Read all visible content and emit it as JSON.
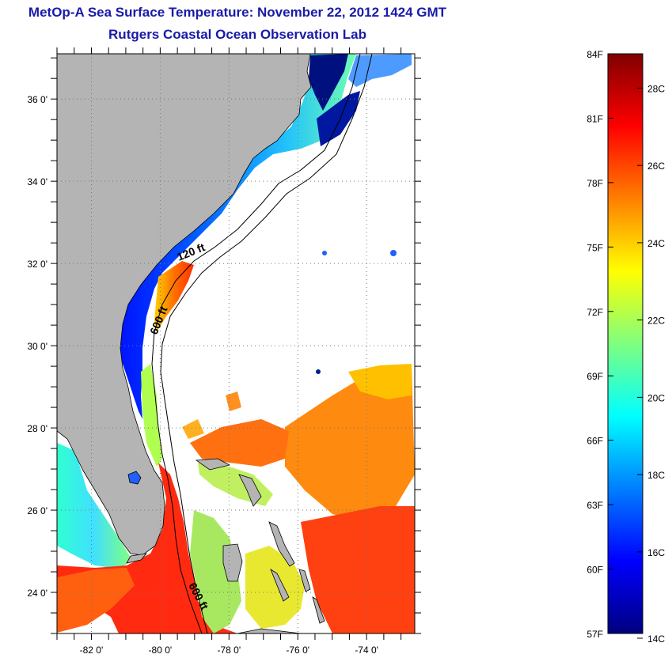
{
  "title": "MetOp-A Sea Surface Temperature:  November 22, 2012 1424 GMT",
  "subtitle": "Rutgers Coastal Ocean Observation Lab",
  "map": {
    "lon_range": [
      -83,
      -72.6
    ],
    "lat_range": [
      23,
      37.1
    ],
    "lat_ticks": [
      {
        "value": 36,
        "label": "36 0'"
      },
      {
        "value": 34,
        "label": "34 0'"
      },
      {
        "value": 32,
        "label": "32 0'"
      },
      {
        "value": 30,
        "label": "30 0'"
      },
      {
        "value": 28,
        "label": "28 0'"
      },
      {
        "value": 26,
        "label": "26 0'"
      },
      {
        "value": 24,
        "label": "24 0'"
      }
    ],
    "lon_ticks": [
      {
        "value": -82,
        "label": "-82 0'"
      },
      {
        "value": -80,
        "label": "-80 0'"
      },
      {
        "value": -78,
        "label": "-78 0'"
      },
      {
        "value": -76,
        "label": "-76 0'"
      },
      {
        "value": -74,
        "label": "-74 0'"
      }
    ],
    "contour_labels": [
      {
        "text": "120 ft"
      },
      {
        "text": "600 ft"
      },
      {
        "text": "600 ft"
      }
    ],
    "colors": {
      "land": "#b4b4b4",
      "ocean_nodata": "#ffffff",
      "grid": "#888888"
    }
  },
  "colorbar": {
    "fahrenheit_labels": [
      "84F",
      "81F",
      "78F",
      "75F",
      "72F",
      "69F",
      "66F",
      "63F",
      "60F",
      "57F"
    ],
    "celsius_labels": [
      "28C",
      "26C",
      "24C",
      "22C",
      "20C",
      "18C",
      "16C",
      "14C"
    ],
    "colors": [
      "#00007f",
      "#0000ff",
      "#007fff",
      "#00ffff",
      "#7fff7f",
      "#ffff00",
      "#ff7f00",
      "#ff0000",
      "#7f0000"
    ]
  }
}
